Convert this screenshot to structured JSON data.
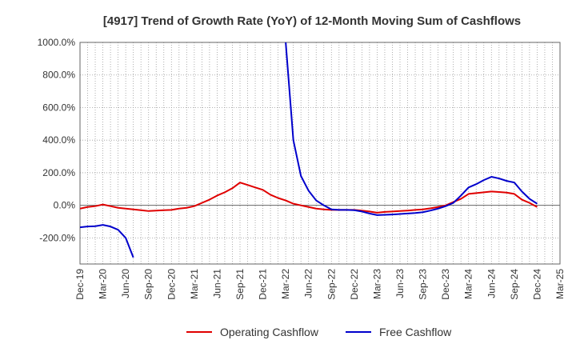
{
  "chart_data": {
    "type": "line",
    "title": "[4917]  Trend of Growth Rate (YoY) of 12-Month Moving Sum of Cashflows",
    "xlabel": "",
    "ylabel": "",
    "x_tick_labels": [
      "Dec-19",
      "Mar-20",
      "Jun-20",
      "Sep-20",
      "Dec-20",
      "Mar-21",
      "Jun-21",
      "Sep-21",
      "Dec-21",
      "Mar-22",
      "Jun-22",
      "Sep-22",
      "Dec-22",
      "Mar-23",
      "Jun-23",
      "Sep-23",
      "Dec-23",
      "Mar-24",
      "Jun-24",
      "Sep-24",
      "Dec-24",
      "Mar-25"
    ],
    "y_tick_labels": [
      "1000.0%",
      "800.0%",
      "600.0%",
      "400.0%",
      "200.0%",
      "0.0%",
      "-200.0%"
    ],
    "y_ticks": [
      1000,
      800,
      600,
      400,
      200,
      0,
      -200
    ],
    "ylim": [
      -360,
      1000
    ],
    "x_range_months": [
      "Dec-19",
      "Mar-25"
    ],
    "grid": true,
    "legend_position": "bottom",
    "series": [
      {
        "name": "Operating Cashflow",
        "color": "#e00000",
        "points": [
          [
            "Dec-19",
            -20
          ],
          [
            "Jan-20",
            -10
          ],
          [
            "Feb-20",
            -5
          ],
          [
            "Mar-20",
            5
          ],
          [
            "Apr-20",
            -5
          ],
          [
            "May-20",
            -15
          ],
          [
            "Jun-20",
            -20
          ],
          [
            "Jul-20",
            -25
          ],
          [
            "Aug-20",
            -30
          ],
          [
            "Sep-20",
            -35
          ],
          [
            "Oct-20",
            -32
          ],
          [
            "Nov-20",
            -30
          ],
          [
            "Dec-20",
            -28
          ],
          [
            "Jan-21",
            -20
          ],
          [
            "Feb-21",
            -15
          ],
          [
            "Mar-21",
            -5
          ],
          [
            "Apr-21",
            15
          ],
          [
            "May-21",
            35
          ],
          [
            "Jun-21",
            60
          ],
          [
            "Jul-21",
            80
          ],
          [
            "Aug-21",
            105
          ],
          [
            "Sep-21",
            140
          ],
          [
            "Oct-21",
            125
          ],
          [
            "Nov-21",
            110
          ],
          [
            "Dec-21",
            95
          ],
          [
            "Jan-22",
            65
          ],
          [
            "Feb-22",
            45
          ],
          [
            "Mar-22",
            30
          ],
          [
            "Apr-22",
            10
          ],
          [
            "May-22",
            0
          ],
          [
            "Jun-22",
            -10
          ],
          [
            "Jul-22",
            -20
          ],
          [
            "Aug-22",
            -25
          ],
          [
            "Sep-22",
            -28
          ],
          [
            "Oct-22",
            -28
          ],
          [
            "Nov-22",
            -28
          ],
          [
            "Dec-22",
            -28
          ],
          [
            "Jan-23",
            -32
          ],
          [
            "Feb-23",
            -38
          ],
          [
            "Mar-23",
            -45
          ],
          [
            "Apr-23",
            -40
          ],
          [
            "May-23",
            -38
          ],
          [
            "Jun-23",
            -35
          ],
          [
            "Jul-23",
            -32
          ],
          [
            "Aug-23",
            -28
          ],
          [
            "Sep-23",
            -25
          ],
          [
            "Oct-23",
            -18
          ],
          [
            "Nov-23",
            -10
          ],
          [
            "Dec-23",
            0
          ],
          [
            "Jan-24",
            20
          ],
          [
            "Feb-24",
            40
          ],
          [
            "Mar-24",
            70
          ],
          [
            "Apr-24",
            75
          ],
          [
            "May-24",
            80
          ],
          [
            "Jun-24",
            85
          ],
          [
            "Jul-24",
            82
          ],
          [
            "Aug-24",
            78
          ],
          [
            "Sep-24",
            70
          ],
          [
            "Oct-24",
            35
          ],
          [
            "Nov-24",
            15
          ],
          [
            "Dec-24",
            -10
          ]
        ]
      },
      {
        "name": "Free Cashflow",
        "color": "#0000cc",
        "segments": [
          [
            [
              "Dec-19",
              -135
            ],
            [
              "Jan-20",
              -130
            ],
            [
              "Feb-20",
              -128
            ],
            [
              "Mar-20",
              -120
            ],
            [
              "Apr-20",
              -130
            ],
            [
              "May-20",
              -150
            ],
            [
              "Jun-20",
              -200
            ],
            [
              "Jul-20",
              -320
            ]
          ],
          [
            [
              "Mar-22",
              1000
            ],
            [
              "Apr-22",
              400
            ],
            [
              "May-22",
              180
            ],
            [
              "Jun-22",
              90
            ],
            [
              "Jul-22",
              30
            ],
            [
              "Aug-22",
              0
            ],
            [
              "Sep-22",
              -25
            ],
            [
              "Oct-22",
              -28
            ],
            [
              "Nov-22",
              -28
            ],
            [
              "Dec-22",
              -30
            ],
            [
              "Jan-23",
              -38
            ],
            [
              "Feb-23",
              -50
            ],
            [
              "Mar-23",
              -60
            ],
            [
              "Apr-23",
              -58
            ],
            [
              "May-23",
              -56
            ],
            [
              "Jun-23",
              -53
            ],
            [
              "Jul-23",
              -50
            ],
            [
              "Aug-23",
              -47
            ],
            [
              "Sep-23",
              -42
            ],
            [
              "Oct-23",
              -32
            ],
            [
              "Nov-23",
              -20
            ],
            [
              "Dec-23",
              -5
            ],
            [
              "Jan-24",
              15
            ],
            [
              "Feb-24",
              60
            ],
            [
              "Mar-24",
              110
            ],
            [
              "Apr-24",
              130
            ],
            [
              "May-24",
              155
            ],
            [
              "Jun-24",
              175
            ],
            [
              "Jul-24",
              165
            ],
            [
              "Aug-24",
              150
            ],
            [
              "Sep-24",
              140
            ],
            [
              "Oct-24",
              85
            ],
            [
              "Nov-24",
              40
            ],
            [
              "Dec-24",
              10
            ]
          ]
        ]
      }
    ]
  }
}
